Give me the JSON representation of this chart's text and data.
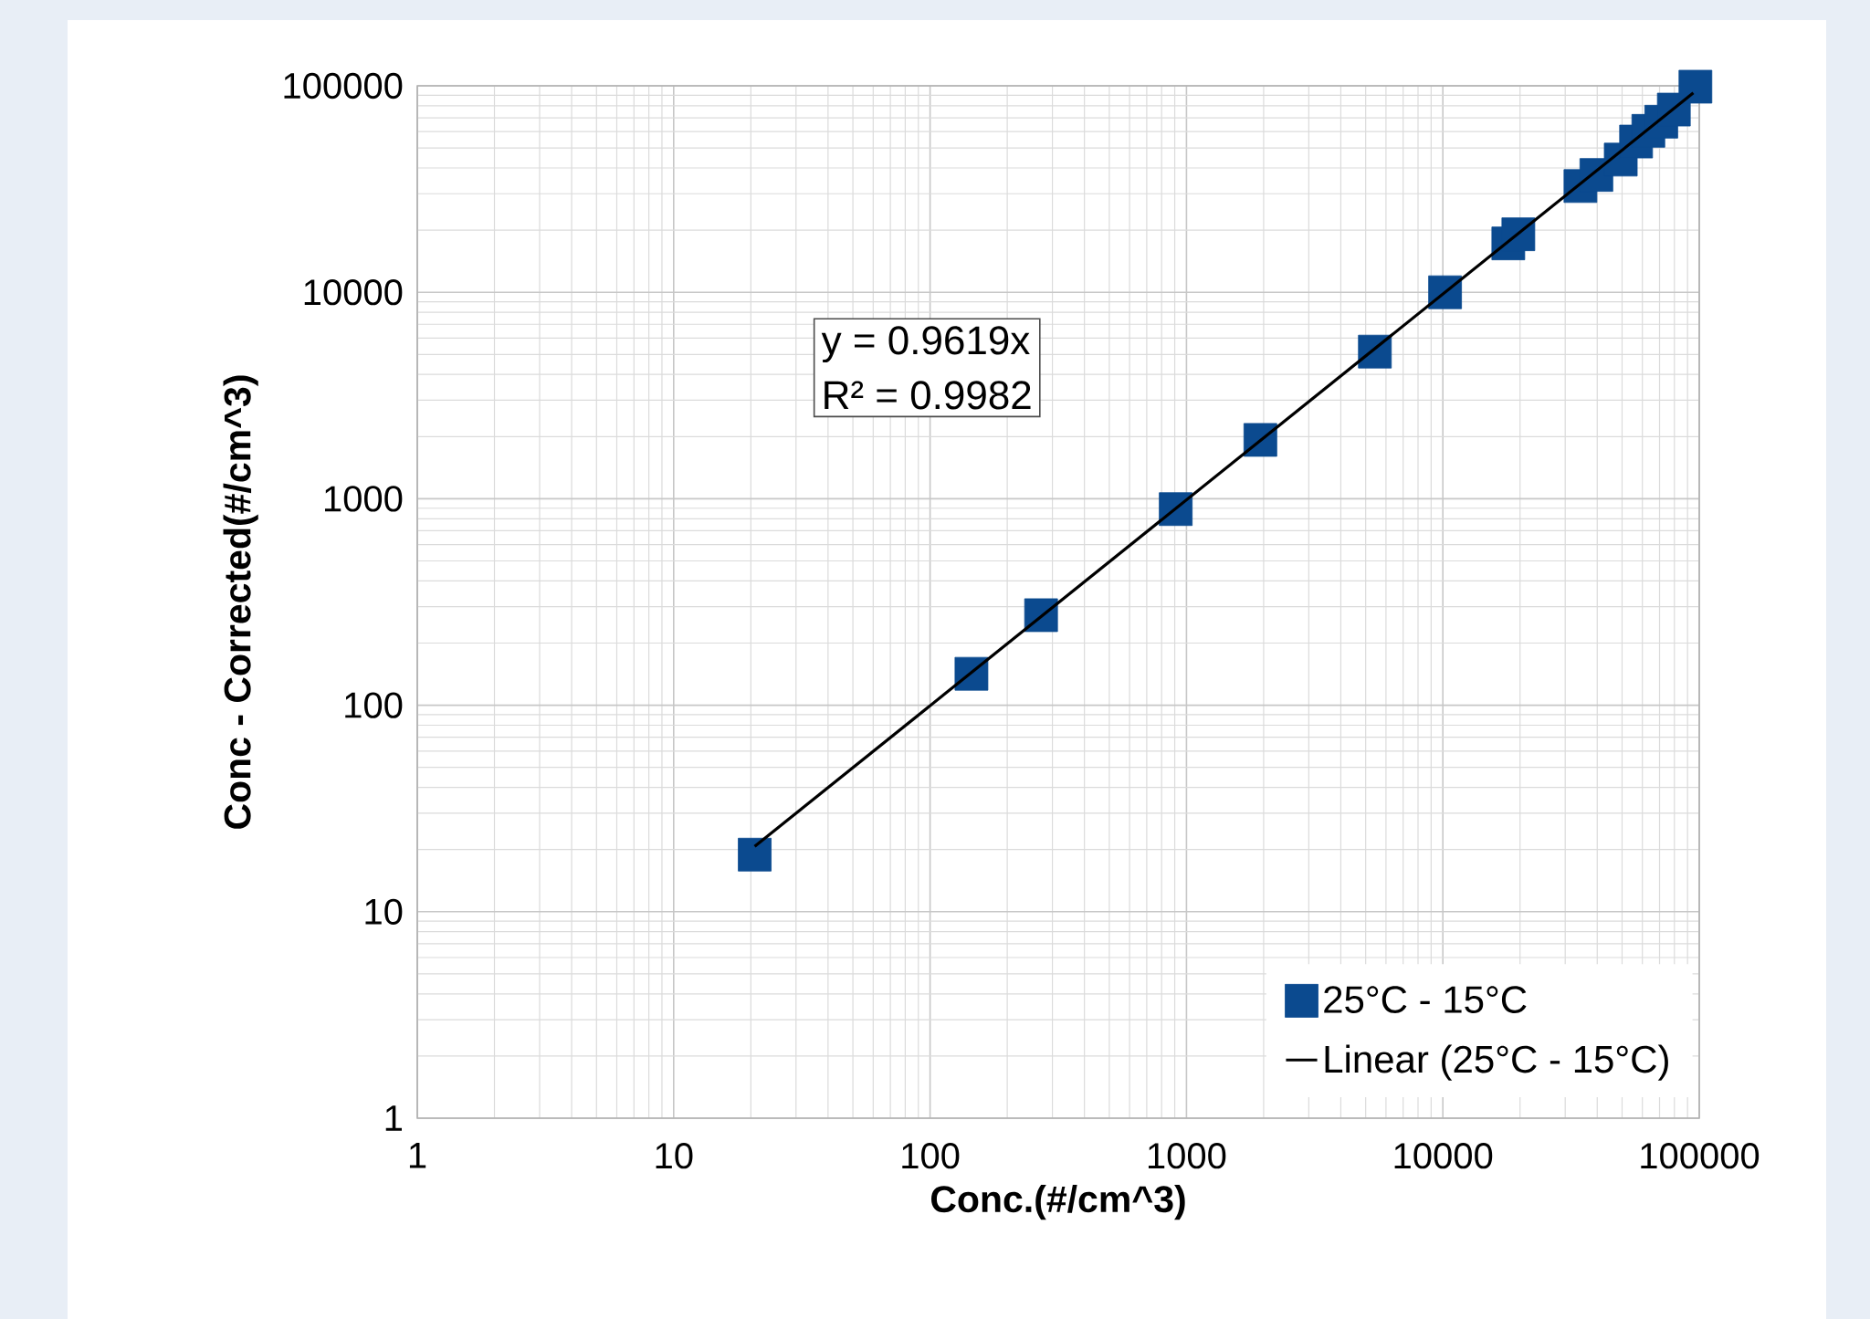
{
  "chart_data": {
    "type": "scatter",
    "xlabel": "Conc.(#/cm^3)",
    "ylabel": "Conc - Corrected(#/cm^3)",
    "annotations": [
      "y = 0.9619x",
      "R² = 0.9982"
    ],
    "log": "xy",
    "grid": true,
    "legend": "bottom right",
    "xlim": [
      1,
      100000
    ],
    "ylim": [
      1,
      100000
    ],
    "xticks": [
      1,
      10,
      100,
      1000,
      10000,
      100000
    ],
    "yticks": [
      1,
      10,
      100,
      1000,
      10000,
      100000
    ],
    "series": [
      {
        "name": "25°C - 15°C",
        "marker": "square",
        "color": "#0b4a8f",
        "x": [
          20.7,
          145,
          271,
          908,
          1942,
          5430,
          10200,
          18000,
          19700,
          34400,
          39700,
          49400,
          56700,
          63300,
          71100,
          79600,
          96600
        ],
        "values": [
          18.9,
          142,
          273,
          891,
          1928,
          5160,
          10000,
          17250,
          19100,
          32700,
          37000,
          43900,
          53700,
          60500,
          67000,
          76700,
          99000
        ]
      },
      {
        "name": "Linear (25°C - 15°C)",
        "type": "line",
        "marker": "none",
        "line_style": "solid",
        "color": "#000000",
        "x": [
          20.7,
          94800
        ],
        "values": [
          20.7,
          92300
        ]
      }
    ]
  }
}
